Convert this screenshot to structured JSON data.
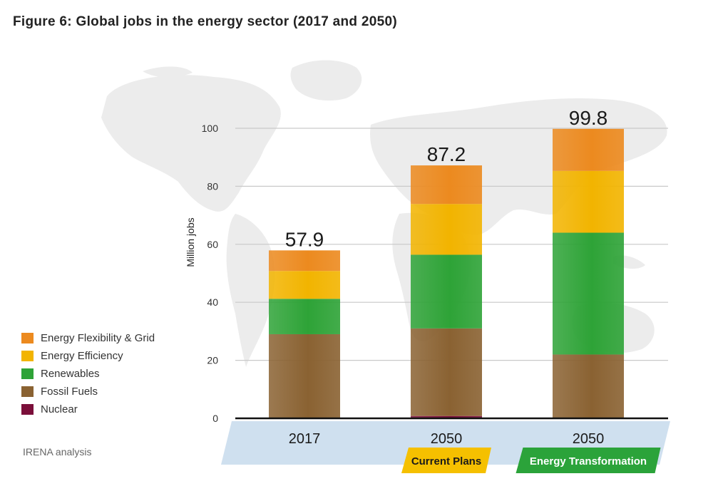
{
  "title": "Figure 6: Global jobs in the energy sector (2017 and 2050)",
  "source": "IRENA analysis",
  "chart_data": {
    "type": "bar",
    "stacked": true,
    "categories": [
      "2017",
      "2050",
      "2050"
    ],
    "category_sublabels": [
      "",
      "Current Plans",
      "Energy Transformation"
    ],
    "sublabel_colors": [
      "",
      "#f5c000",
      "#2ba33a"
    ],
    "sublabel_text_colors": [
      "",
      "#1a1a1a",
      "#ffffff"
    ],
    "ylabel": "Million jobs",
    "ylim": [
      0,
      100
    ],
    "yticks": [
      0,
      20,
      40,
      60,
      80,
      100
    ],
    "totals": [
      "57.9",
      "87.2",
      "99.8"
    ],
    "grid": true,
    "legend_position": "left",
    "series": [
      {
        "name": "Nuclear",
        "color": "#7b0f3a",
        "values": [
          0,
          0.8,
          0
        ]
      },
      {
        "name": "Fossil Fuels",
        "color": "#8a6232",
        "values": [
          29.0,
          30.2,
          22.0
        ]
      },
      {
        "name": "Renewables",
        "color": "#2ea337",
        "values": [
          12.2,
          25.4,
          42.0
        ]
      },
      {
        "name": "Energy Efficiency",
        "color": "#f2b400",
        "values": [
          9.6,
          17.5,
          21.3
        ]
      },
      {
        "name": "Energy Flexibility & Grid",
        "color": "#ec8a1f",
        "values": [
          7.1,
          13.3,
          14.5
        ]
      }
    ]
  },
  "legend": {
    "items": [
      {
        "label": "Energy Flexibility & Grid",
        "color": "#ec8a1f"
      },
      {
        "label": "Energy Efficiency",
        "color": "#f2b400"
      },
      {
        "label": "Renewables",
        "color": "#2ea337"
      },
      {
        "label": "Fossil Fuels",
        "color": "#8a6232"
      },
      {
        "label": "Nuclear",
        "color": "#7b0f3a"
      }
    ]
  }
}
